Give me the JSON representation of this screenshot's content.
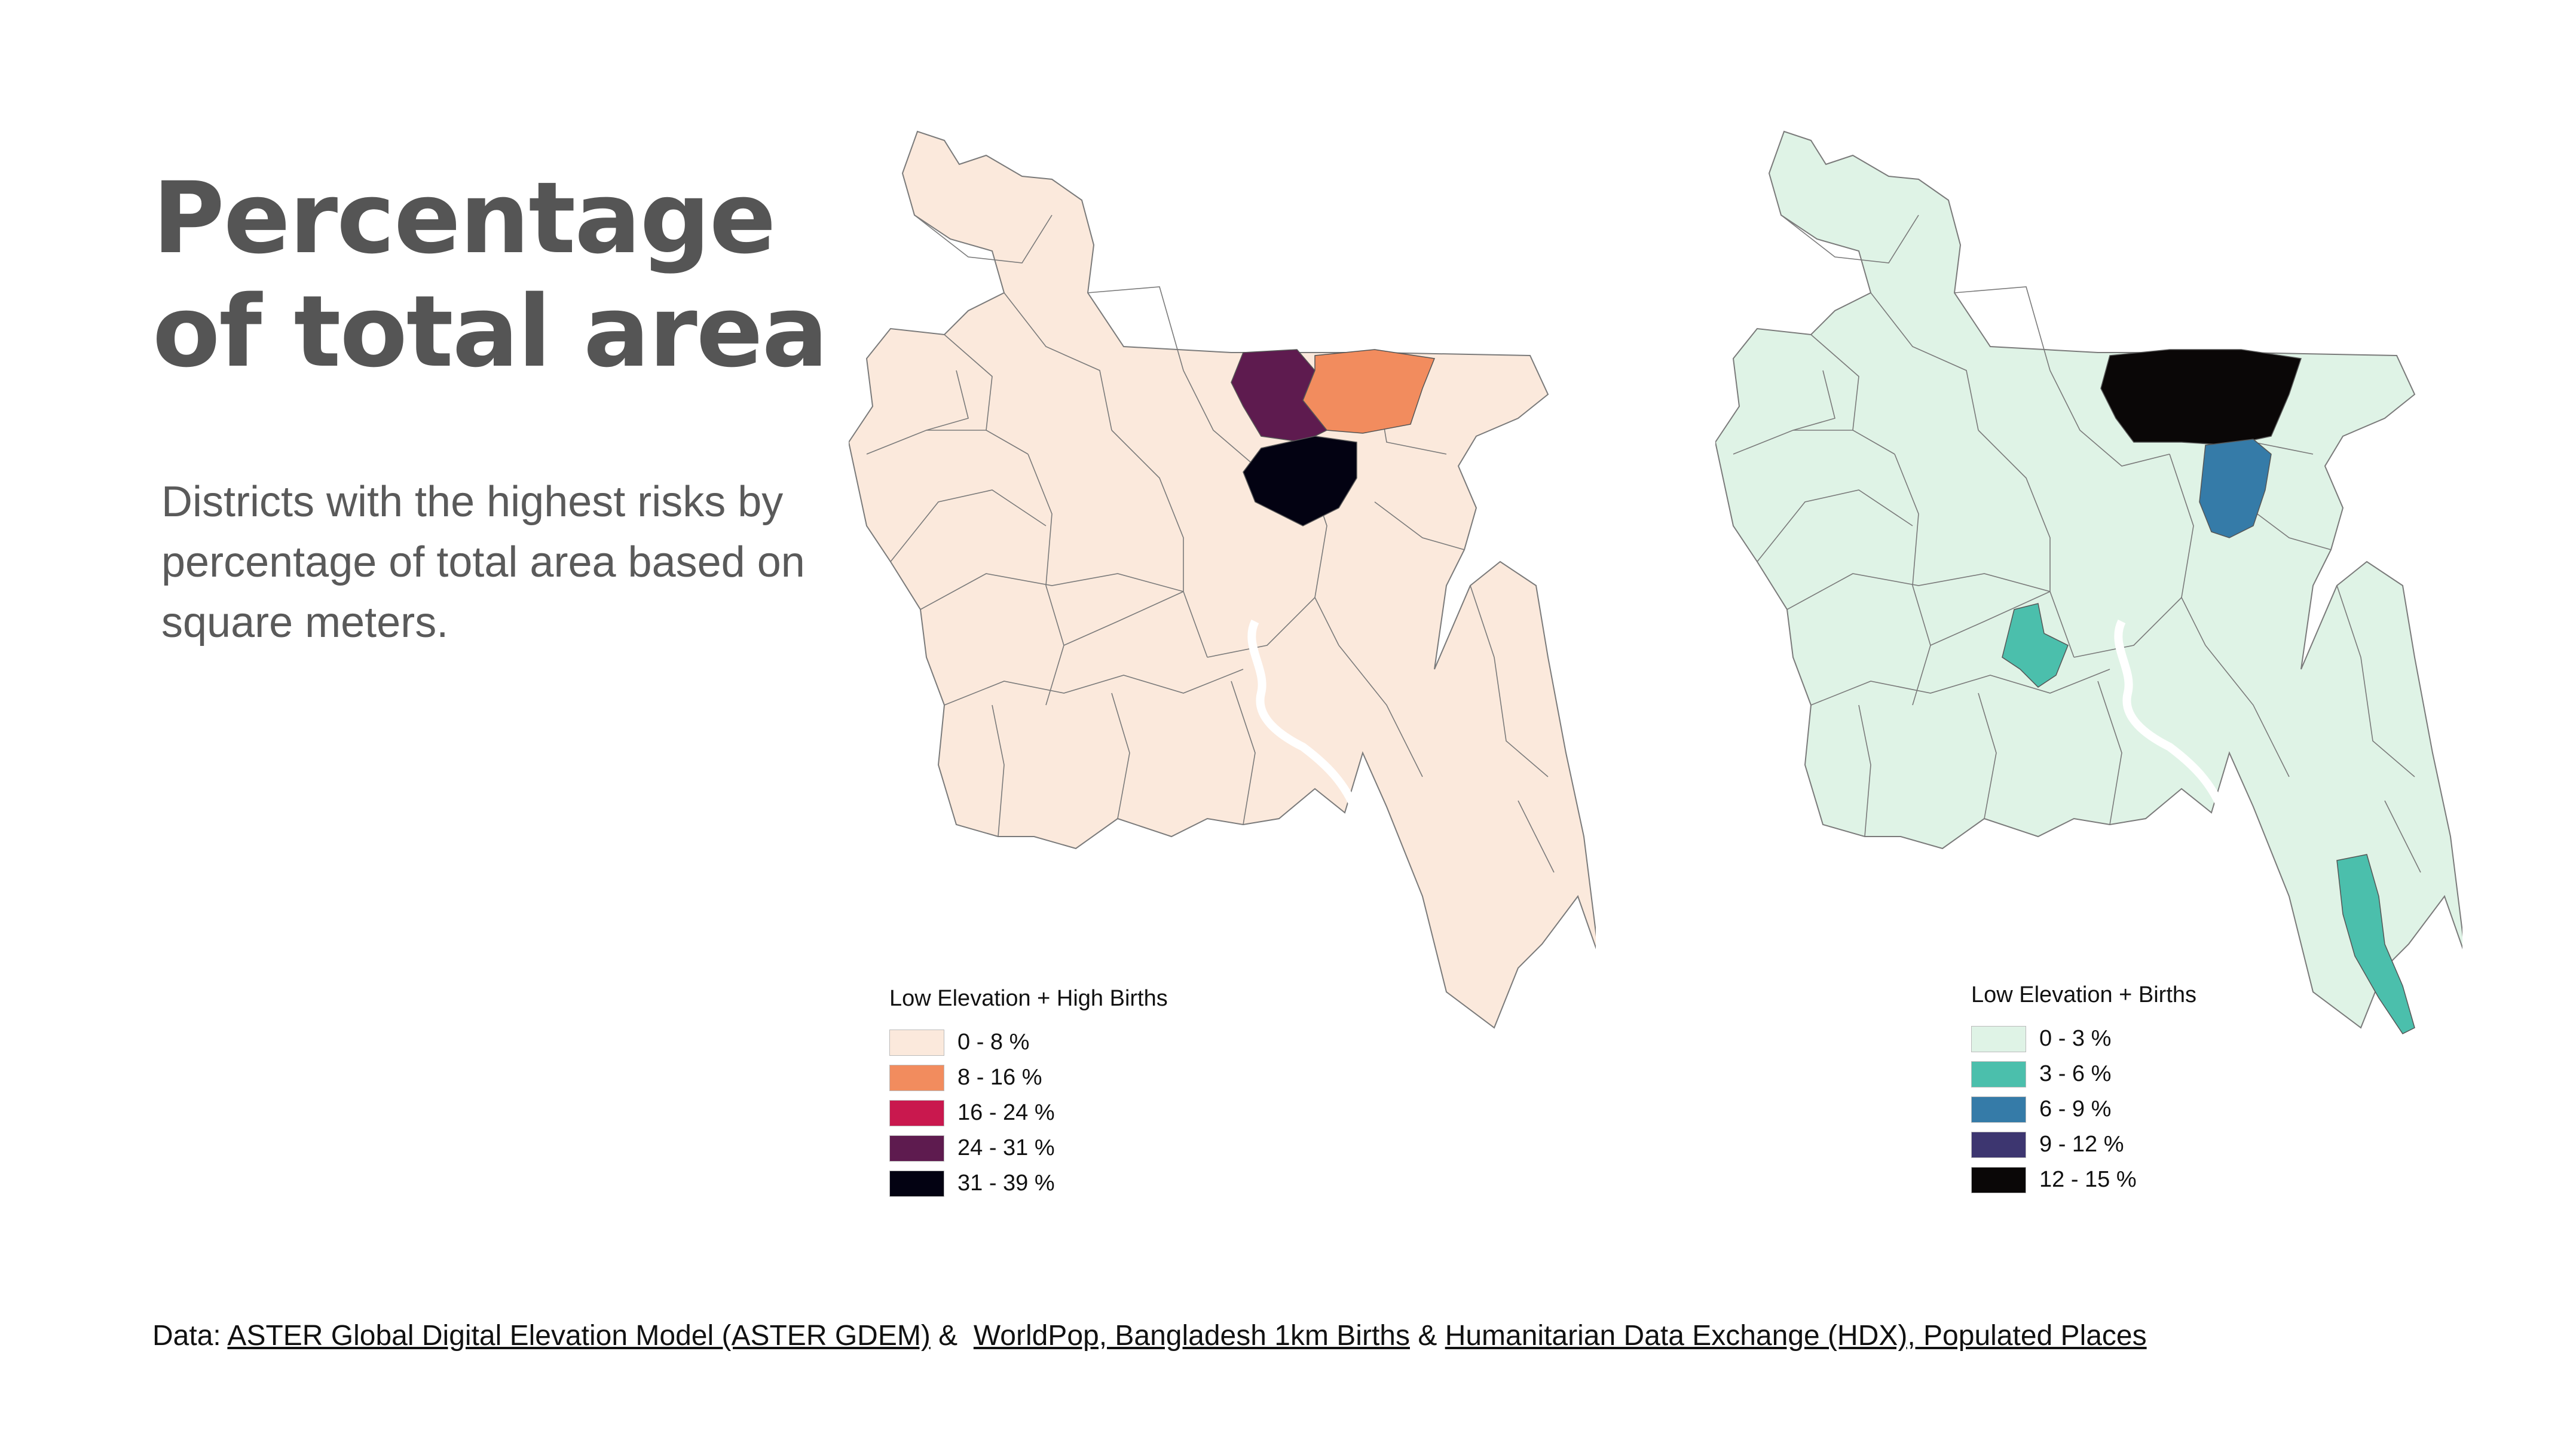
{
  "title_lines": [
    "Percentage",
    "of total area"
  ],
  "subtitle": "Districts with the highest risks by percentage of total area based on square meters.",
  "map_left": {
    "base_fill": "#fbe9dc",
    "border": "#7a7a7a",
    "highlights": [
      {
        "district": "sunamganj-west",
        "color": "#5e1b4f"
      },
      {
        "district": "netrokona-east",
        "color": "#f28c5e"
      },
      {
        "district": "kishoreganj",
        "color": "#030212"
      }
    ],
    "legend": {
      "title": "Low Elevation + High Births",
      "items": [
        {
          "label": "0 - 8 %",
          "color": "#fbe9dc"
        },
        {
          "label": "8 - 16 %",
          "color": "#f28c5e"
        },
        {
          "label": "16 - 24 %",
          "color": "#c9184e"
        },
        {
          "label": "24 - 31 %",
          "color": "#5e1b4f"
        },
        {
          "label": "31 - 39 %",
          "color": "#030212"
        }
      ]
    }
  },
  "map_right": {
    "base_fill": "#dff3e6",
    "border": "#7a7a7a",
    "highlights": [
      {
        "district": "sunamganj",
        "color": "#0a0707"
      },
      {
        "district": "habiganj",
        "color": "#357ba8"
      },
      {
        "district": "dhaka",
        "color": "#4bbfac"
      },
      {
        "district": "cox-bazar",
        "color": "#4bbfac"
      }
    ],
    "legend": {
      "title": "Low Elevation + Births",
      "items": [
        {
          "label": "0 - 3 %",
          "color": "#dff3e6"
        },
        {
          "label": "3 - 6 %",
          "color": "#4bbfac"
        },
        {
          "label": "6 - 9 %",
          "color": "#357ba8"
        },
        {
          "label": "9 - 12 %",
          "color": "#3d3670"
        },
        {
          "label": "12 - 15 %",
          "color": "#0a0707"
        }
      ]
    }
  },
  "footer": {
    "prefix": "Data:",
    "sep1": "&",
    "sep2": "&",
    "links": [
      "ASTER Global Digital Elevation Model (ASTER GDEM)",
      "WorldPop, Bangladesh 1km Births",
      "Humanitarian Data Exchange (HDX), Populated Places"
    ]
  }
}
